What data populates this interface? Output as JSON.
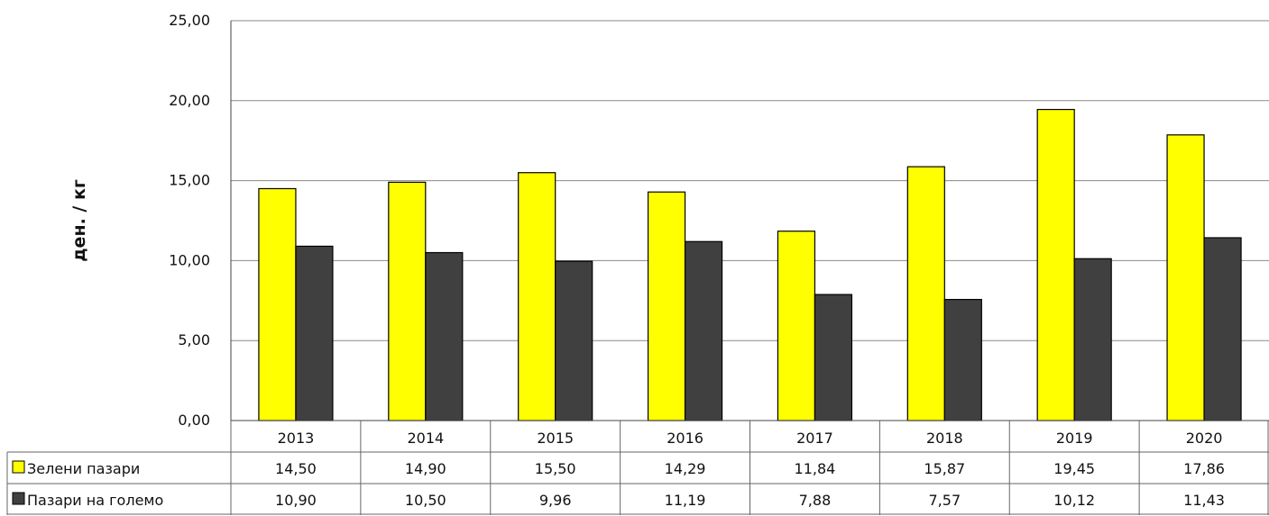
{
  "chart_data": {
    "type": "bar",
    "title": "",
    "xlabel": "",
    "ylabel": "ден. / кг",
    "ylim": [
      0,
      25
    ],
    "yticks": [
      "0,00",
      "5,00",
      "10,00",
      "15,00",
      "20,00",
      "25,00"
    ],
    "grid": true,
    "legend": "data-table-left",
    "categories": [
      "2013",
      "2014",
      "2015",
      "2016",
      "2017",
      "2018",
      "2019",
      "2020"
    ],
    "series": [
      {
        "name": "Зелени пазари",
        "color": "#ffff00",
        "values": [
          14.5,
          14.9,
          15.5,
          14.29,
          11.84,
          15.87,
          19.45,
          17.86
        ],
        "labels": [
          "14,50",
          "14,90",
          "15,50",
          "14,29",
          "11,84",
          "15,87",
          "19,45",
          "17,86"
        ]
      },
      {
        "name": "Пазари на големо",
        "color": "#404040",
        "values": [
          10.9,
          10.5,
          9.96,
          11.19,
          7.88,
          7.57,
          10.12,
          11.43
        ],
        "labels": [
          "10,90",
          "10,50",
          "9,96",
          "11,19",
          "7,88",
          "7,57",
          "10,12",
          "11,43"
        ]
      }
    ],
    "data_table": true
  }
}
